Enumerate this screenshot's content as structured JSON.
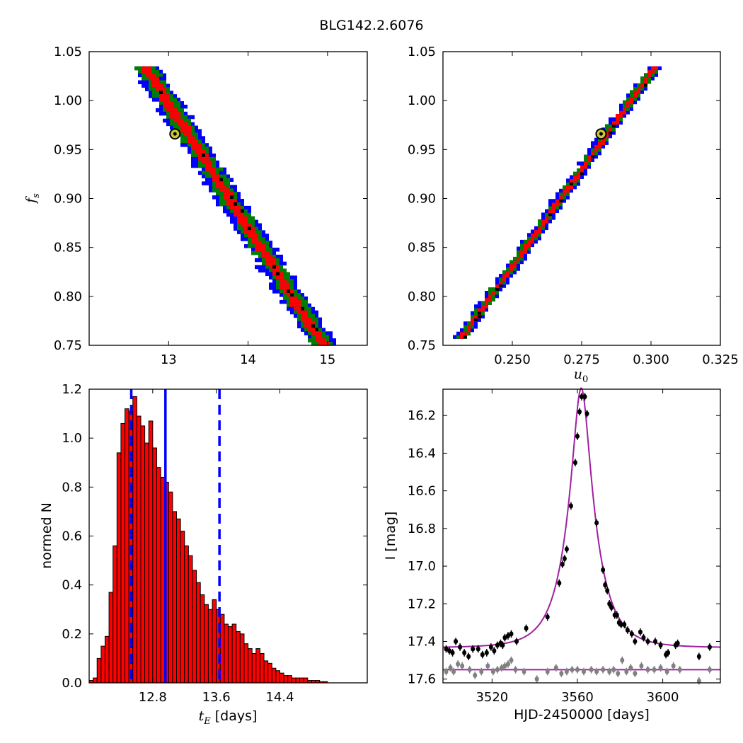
{
  "figure_title": "BLG142.2.6076",
  "colors": {
    "red": "#ff0000",
    "green": "#008000",
    "blue": "#0000ff",
    "black": "#000000",
    "magenta": "#a020a0",
    "gray": "#808080",
    "marker_yellow": "#c8c832",
    "bar_edge": "#000000"
  },
  "chart_data": [
    {
      "id": "fs_vs_tE",
      "type": "heatmap",
      "description_type": "posterior density map",
      "xlabel": "",
      "ylabel": "f_s",
      "xlim": [
        12.0,
        15.5
      ],
      "ylim": [
        0.75,
        1.05
      ],
      "xticks": [
        "13",
        "14",
        "15"
      ],
      "yticks": [
        "0.75",
        "0.80",
        "0.85",
        "0.90",
        "0.95",
        "1.00",
        "1.05"
      ],
      "ridge": {
        "x_start": 12.7,
        "y_start": 1.035,
        "x_end": 14.95,
        "y_end": 0.75
      },
      "widths_x": {
        "blue": 0.34,
        "green": 0.24,
        "red": 0.12
      },
      "best_fit": {
        "x": 13.08,
        "y": 0.966
      },
      "levels": [
        "red: 1-sigma",
        "green: 2-sigma",
        "blue: 3-sigma"
      ]
    },
    {
      "id": "fs_vs_u0",
      "type": "heatmap",
      "description_type": "posterior density map",
      "xlabel": "u_0",
      "ylabel": "",
      "xlim": [
        0.225,
        0.325
      ],
      "ylim": [
        0.75,
        1.05
      ],
      "xticks": [
        "0.250",
        "0.275",
        "0.300",
        "0.325"
      ],
      "yticks": [
        "0.75",
        "0.80",
        "0.85",
        "0.90",
        "0.95",
        "1.00",
        "1.05"
      ],
      "ridge": {
        "x_start": 0.2315,
        "y_start": 0.757,
        "x_end": 0.3015,
        "y_end": 1.035
      },
      "widths_x": {
        "blue": 0.005,
        "green": 0.0034,
        "red": 0.0018
      },
      "best_fit": {
        "x": 0.282,
        "y": 0.966
      }
    },
    {
      "id": "tE_histogram",
      "type": "bar",
      "xlabel": "t_E  [days]",
      "ylabel": "normed N",
      "xlim": [
        12.0,
        15.5
      ],
      "ylim": [
        0.0,
        1.2
      ],
      "xticks": [
        "12.8",
        "13.6",
        "14.4"
      ],
      "yticks": [
        "0.0",
        "0.2",
        "0.4",
        "0.6",
        "0.8",
        "1.0",
        "1.2"
      ],
      "bin_start": 12.0,
      "bin_width": 0.05,
      "values": [
        0.01,
        0.02,
        0.1,
        0.15,
        0.19,
        0.37,
        0.56,
        0.94,
        1.06,
        1.12,
        1.11,
        1.17,
        1.09,
        1.05,
        0.98,
        1.07,
        0.96,
        0.88,
        0.84,
        0.82,
        0.78,
        0.7,
        0.67,
        0.62,
        0.56,
        0.52,
        0.46,
        0.41,
        0.36,
        0.32,
        0.3,
        0.34,
        0.3,
        0.28,
        0.24,
        0.23,
        0.24,
        0.21,
        0.2,
        0.16,
        0.14,
        0.12,
        0.14,
        0.12,
        0.09,
        0.08,
        0.06,
        0.05,
        0.04,
        0.03,
        0.03,
        0.02,
        0.02,
        0.02,
        0.02,
        0.01,
        0.01,
        0.01,
        0.005,
        0.005
      ],
      "median_line": 12.96,
      "dashed_lines": [
        12.53,
        13.64
      ]
    },
    {
      "id": "lightcurve",
      "type": "scatter",
      "xlabel": "HJD-2450000 [days]",
      "ylabel": "I [mag]",
      "xlim": [
        3497,
        3627
      ],
      "ylim": [
        17.62,
        16.06
      ],
      "xticks": [
        "3520",
        "3560",
        "3600"
      ],
      "yticks": [
        "16.2",
        "16.4",
        "16.6",
        "16.8",
        "17.0",
        "17.2",
        "17.4",
        "17.6"
      ],
      "model": {
        "t0": 3561.8,
        "tE": 13.0,
        "u0": 0.282,
        "fs": 0.966,
        "baseline": 17.433
      },
      "residual_offset_line": 17.55,
      "black_points": [
        [
          3498.5,
          17.44
        ],
        [
          3500.0,
          17.45
        ],
        [
          3501.5,
          17.46
        ],
        [
          3503.0,
          17.4
        ],
        [
          3505.0,
          17.43
        ],
        [
          3507.0,
          17.46
        ],
        [
          3509.0,
          17.48
        ],
        [
          3511.0,
          17.44
        ],
        [
          3513.5,
          17.44
        ],
        [
          3515.5,
          17.47
        ],
        [
          3517.5,
          17.46
        ],
        [
          3519.5,
          17.43
        ],
        [
          3521.0,
          17.45
        ],
        [
          3522.5,
          17.42
        ],
        [
          3524.0,
          17.41
        ],
        [
          3525.0,
          17.42
        ],
        [
          3526.0,
          17.38
        ],
        [
          3527.5,
          17.37
        ],
        [
          3529.0,
          17.36
        ],
        [
          3531.5,
          17.4
        ],
        [
          3536.0,
          17.33
        ],
        [
          3546.0,
          17.27
        ],
        [
          3551.5,
          17.09
        ],
        [
          3553.0,
          16.99
        ],
        [
          3554.0,
          16.96
        ],
        [
          3555.0,
          16.91
        ],
        [
          3557.0,
          16.68
        ],
        [
          3559.0,
          16.45
        ],
        [
          3560.0,
          16.31
        ],
        [
          3561.0,
          16.18
        ],
        [
          3562.0,
          16.1
        ],
        [
          3563.5,
          16.1
        ],
        [
          3564.5,
          16.19
        ],
        [
          3569.0,
          16.77
        ],
        [
          3572.0,
          17.02
        ],
        [
          3573.0,
          17.1
        ],
        [
          3574.0,
          17.13
        ],
        [
          3575.0,
          17.2
        ],
        [
          3576.0,
          17.22
        ],
        [
          3577.5,
          17.26
        ],
        [
          3578.5,
          17.26
        ],
        [
          3579.5,
          17.3
        ],
        [
          3580.5,
          17.31
        ],
        [
          3582.0,
          17.31
        ],
        [
          3583.5,
          17.34
        ],
        [
          3585.5,
          17.36
        ],
        [
          3587.0,
          17.4
        ],
        [
          3589.5,
          17.35
        ],
        [
          3591.0,
          17.38
        ],
        [
          3593.0,
          17.4
        ],
        [
          3596.5,
          17.4
        ],
        [
          3599.0,
          17.42
        ],
        [
          3601.5,
          17.47
        ],
        [
          3602.5,
          17.46
        ],
        [
          3606.0,
          17.42
        ],
        [
          3607.0,
          17.41
        ],
        [
          3617.0,
          17.48
        ],
        [
          3622.0,
          17.43
        ]
      ],
      "gray_points": [
        [
          3498.5,
          17.56
        ],
        [
          3500.5,
          17.54
        ],
        [
          3502.0,
          17.56
        ],
        [
          3504.0,
          17.52
        ],
        [
          3506.0,
          17.53
        ],
        [
          3509.5,
          17.55
        ],
        [
          3512.0,
          17.58
        ],
        [
          3515.0,
          17.56
        ],
        [
          3518.0,
          17.53
        ],
        [
          3520.5,
          17.56
        ],
        [
          3522.5,
          17.55
        ],
        [
          3524.5,
          17.54
        ],
        [
          3526.0,
          17.53
        ],
        [
          3527.5,
          17.52
        ],
        [
          3529.0,
          17.5
        ],
        [
          3531.0,
          17.55
        ],
        [
          3535.0,
          17.56
        ],
        [
          3541.0,
          17.6
        ],
        [
          3546.0,
          17.56
        ],
        [
          3550.0,
          17.54
        ],
        [
          3552.5,
          17.57
        ],
        [
          3555.0,
          17.56
        ],
        [
          3557.5,
          17.55
        ],
        [
          3560.0,
          17.55
        ],
        [
          3563.0,
          17.56
        ],
        [
          3566.5,
          17.55
        ],
        [
          3569.0,
          17.56
        ],
        [
          3572.0,
          17.55
        ],
        [
          3575.0,
          17.56
        ],
        [
          3577.0,
          17.55
        ],
        [
          3579.0,
          17.57
        ],
        [
          3581.0,
          17.5
        ],
        [
          3583.0,
          17.56
        ],
        [
          3585.0,
          17.54
        ],
        [
          3587.0,
          17.57
        ],
        [
          3590.0,
          17.53
        ],
        [
          3593.0,
          17.55
        ],
        [
          3596.0,
          17.55
        ],
        [
          3599.0,
          17.54
        ],
        [
          3602.0,
          17.56
        ],
        [
          3605.0,
          17.53
        ],
        [
          3608.0,
          17.55
        ],
        [
          3617.0,
          17.61
        ],
        [
          3622.0,
          17.55
        ]
      ]
    }
  ]
}
